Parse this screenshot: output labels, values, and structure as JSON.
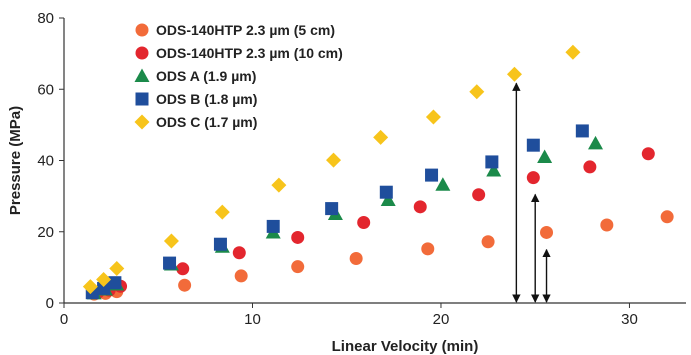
{
  "chart_data": {
    "type": "scatter",
    "title": "",
    "xlabel": "Linear Velocity (min)",
    "ylabel": "Pressure (MPa)",
    "xlim": [
      0,
      33
    ],
    "ylim": [
      0,
      80
    ],
    "xticks": [
      0,
      10,
      20,
      30
    ],
    "yticks": [
      0,
      20,
      40,
      60,
      80
    ],
    "grid": false,
    "legend_position": "top-left",
    "series": [
      {
        "name": "ODS-140HTP 2.3 µm (5 cm)",
        "marker": "circle",
        "color": "#f26b3a",
        "points": [
          [
            1.6,
            2.5
          ],
          [
            2.2,
            2.7
          ],
          [
            2.8,
            3.2
          ],
          [
            6.4,
            5.0
          ],
          [
            9.4,
            7.6
          ],
          [
            12.4,
            10.2
          ],
          [
            15.5,
            12.5
          ],
          [
            19.3,
            15.2
          ],
          [
            22.5,
            17.2
          ],
          [
            25.6,
            19.8
          ],
          [
            28.8,
            21.9
          ],
          [
            32.0,
            24.2
          ]
        ]
      },
      {
        "name": "ODS-140HTP 2.3 µm (10 cm)",
        "marker": "circle",
        "color": "#e3262e",
        "points": [
          [
            1.8,
            3.0
          ],
          [
            2.4,
            3.6
          ],
          [
            3.0,
            4.7
          ],
          [
            6.3,
            9.6
          ],
          [
            9.3,
            14.1
          ],
          [
            12.4,
            18.4
          ],
          [
            15.9,
            22.6
          ],
          [
            18.9,
            27.0
          ],
          [
            22.0,
            30.4
          ],
          [
            24.9,
            35.2
          ],
          [
            27.9,
            38.2
          ],
          [
            31.0,
            41.9
          ]
        ]
      },
      {
        "name": "ODS A (1.9 µm)",
        "marker": "triangle",
        "color": "#1b8a4a",
        "points": [
          [
            1.6,
            2.7
          ],
          [
            2.2,
            3.8
          ],
          [
            2.8,
            5.2
          ],
          [
            5.7,
            10.8
          ],
          [
            8.4,
            15.8
          ],
          [
            11.1,
            19.8
          ],
          [
            14.4,
            25.0
          ],
          [
            17.2,
            28.9
          ],
          [
            20.1,
            33.2
          ],
          [
            22.8,
            37.2
          ],
          [
            25.5,
            41.0
          ],
          [
            28.2,
            44.8
          ]
        ]
      },
      {
        "name": "ODS B (1.8 µm)",
        "marker": "square",
        "color": "#1f4e9c",
        "points": [
          [
            1.5,
            2.9
          ],
          [
            2.1,
            4.1
          ],
          [
            2.7,
            5.7
          ],
          [
            5.6,
            11.2
          ],
          [
            8.3,
            16.5
          ],
          [
            11.1,
            21.5
          ],
          [
            14.2,
            26.5
          ],
          [
            17.1,
            31.1
          ],
          [
            19.5,
            35.9
          ],
          [
            22.7,
            39.6
          ],
          [
            24.9,
            44.3
          ],
          [
            27.5,
            48.3
          ]
        ]
      },
      {
        "name": "ODS C (1.7 µm)",
        "marker": "diamond",
        "color": "#f7c41b",
        "points": [
          [
            1.4,
            4.6
          ],
          [
            2.1,
            6.6
          ],
          [
            2.8,
            9.7
          ],
          [
            5.7,
            17.4
          ],
          [
            8.4,
            25.5
          ],
          [
            11.4,
            33.1
          ],
          [
            14.3,
            40.1
          ],
          [
            16.8,
            46.5
          ],
          [
            19.6,
            52.2
          ],
          [
            21.9,
            59.3
          ],
          [
            23.9,
            64.2
          ],
          [
            27.0,
            70.4
          ]
        ]
      }
    ],
    "annotations": [
      {
        "type": "double-arrow",
        "x": 24.0,
        "y_from": 0,
        "y_to": 64.2
      },
      {
        "type": "double-arrow",
        "x": 25.0,
        "y_from": 0,
        "y_to": 33.0
      },
      {
        "type": "double-arrow",
        "x": 25.6,
        "y_from": 0,
        "y_to": 17.5
      }
    ]
  }
}
